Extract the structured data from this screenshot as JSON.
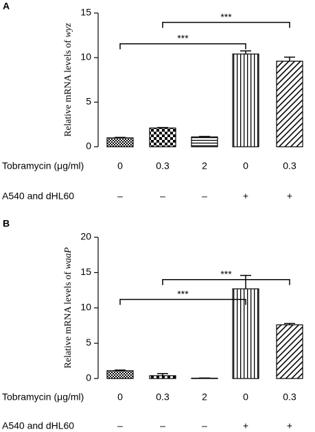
{
  "chart_data": [
    {
      "type": "bar",
      "panel_label": "A",
      "y_label": "Relative mRNA levels of ",
      "y_label_gene": "wyz",
      "row_labels": [
        "Tobramycin (μg/ml)",
        "A540 and dHL60"
      ],
      "categories": [
        "0",
        "0.3",
        "2",
        "0",
        "0.3"
      ],
      "conditions": [
        "–",
        "–",
        "–",
        "+",
        "+"
      ],
      "values": [
        1.0,
        2.1,
        1.1,
        10.4,
        9.6
      ],
      "errors": [
        0.05,
        0.05,
        0.05,
        0.35,
        0.45
      ],
      "patterns": [
        "dots",
        "checker",
        "horizontal",
        "vertical",
        "diagonal"
      ],
      "color": "#000000",
      "ylim": [
        0,
        15
      ],
      "yticks": [
        0,
        5,
        10,
        15
      ],
      "comparisons": [
        {
          "from": 0,
          "to": 3,
          "label": "***"
        },
        {
          "from": 1,
          "to": 4,
          "label": "***"
        }
      ]
    },
    {
      "type": "bar",
      "panel_label": "B",
      "y_label": "Relative mRNA levels of ",
      "y_label_gene": "waaP",
      "row_labels": [
        "Tobramycin (μg/ml)",
        "A540 and dHL60"
      ],
      "categories": [
        "0",
        "0.3",
        "2",
        "0",
        "0.3"
      ],
      "conditions": [
        "–",
        "–",
        "–",
        "+",
        "+"
      ],
      "values": [
        1.1,
        0.4,
        0.05,
        12.7,
        7.6
      ],
      "errors": [
        0.1,
        0.3,
        0.02,
        1.9,
        0.2
      ],
      "patterns": [
        "dots",
        "checker",
        "horizontal",
        "vertical",
        "diagonal"
      ],
      "color": "#000000",
      "ylim": [
        0,
        20
      ],
      "yticks": [
        0,
        5,
        10,
        15,
        20
      ],
      "comparisons": [
        {
          "from": 0,
          "to": 3,
          "label": "***"
        },
        {
          "from": 1,
          "to": 4,
          "label": "***"
        }
      ]
    }
  ]
}
